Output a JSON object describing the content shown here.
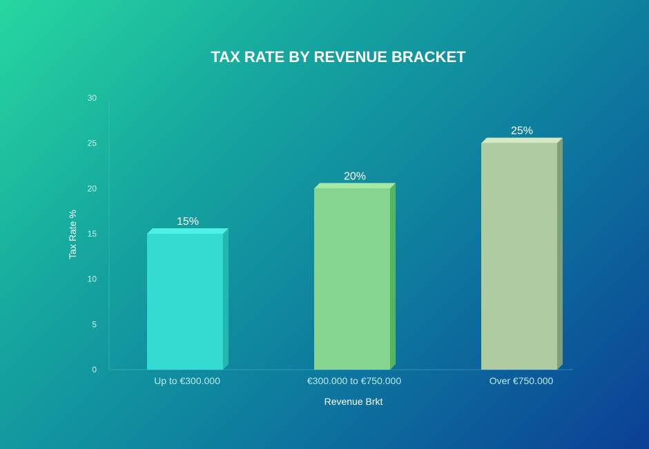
{
  "chart_data": {
    "type": "bar",
    "title": "TAX RATE BY REVENUE BRACKET",
    "xlabel": "Revenue Brkt",
    "ylabel": "Tax Rate %",
    "categories": [
      "Up to €300.000",
      "€300.000 to €750.000",
      "Over €750.000"
    ],
    "values": [
      15,
      20,
      25
    ],
    "data_labels": [
      "15%",
      "20%",
      "25%"
    ],
    "ylim": [
      0,
      30
    ],
    "yticks": [
      0,
      5,
      10,
      15,
      20,
      25,
      30
    ],
    "grid": false,
    "colors": {
      "bars": [
        "#33dbd3",
        "#85d48f",
        "#afcba2"
      ],
      "bar_sides": [
        "#22b8b0",
        "#56b55f",
        "#7f9f76"
      ],
      "bar_tops": [
        "#4ff0e6",
        "#a6e8a6",
        "#d4e8c4"
      ]
    }
  }
}
